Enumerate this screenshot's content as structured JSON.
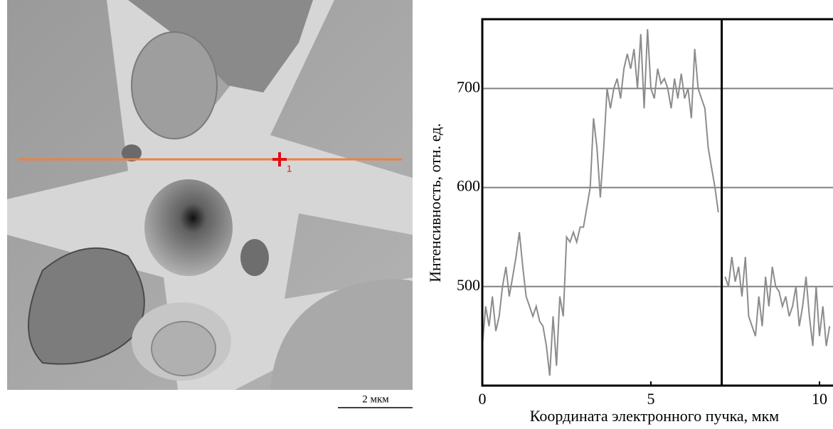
{
  "image": {
    "marker_label": "1",
    "scale_bar": "2 мкм"
  },
  "chart_data": {
    "type": "line",
    "y_label": "Интенсивность, отн. ед.",
    "x_label": "Координата электронного пучка, мкм",
    "color": "#8c8c8c",
    "xlim": [
      0,
      10.4
    ],
    "xticks": [
      0,
      5,
      10
    ],
    "ylim": [
      400,
      770
    ],
    "yticks": [
      500,
      600,
      700
    ],
    "grid": true,
    "cursor_x": 7.1,
    "x": [
      0,
      0.1,
      0.2,
      0.3,
      0.4,
      0.5,
      0.6,
      0.7,
      0.8,
      0.9,
      1.0,
      1.1,
      1.2,
      1.3,
      1.4,
      1.5,
      1.6,
      1.7,
      1.8,
      1.9,
      2.0,
      2.1,
      2.2,
      2.3,
      2.4,
      2.5,
      2.6,
      2.7,
      2.8,
      2.9,
      3.0,
      3.1,
      3.2,
      3.3,
      3.4,
      3.5,
      3.6,
      3.7,
      3.8,
      3.9,
      4.0,
      4.1,
      4.2,
      4.3,
      4.4,
      4.5,
      4.6,
      4.7,
      4.8,
      4.9,
      5.0,
      5.1,
      5.2,
      5.3,
      5.4,
      5.5,
      5.6,
      5.7,
      5.8,
      5.9,
      6.0,
      6.1,
      6.2,
      6.3,
      6.4,
      6.5,
      6.6,
      6.7,
      6.8,
      6.9,
      7.0,
      7.1,
      7.2,
      7.3,
      7.4,
      7.5,
      7.6,
      7.7,
      7.8,
      7.9,
      8.0,
      8.1,
      8.2,
      8.3,
      8.4,
      8.5,
      8.6,
      8.7,
      8.8,
      8.9,
      9.0,
      9.1,
      9.2,
      9.3,
      9.4,
      9.5,
      9.6,
      9.7,
      9.8,
      9.9,
      10.0,
      10.1,
      10.2,
      10.3
    ],
    "values": [
      440,
      480,
      460,
      490,
      455,
      470,
      500,
      520,
      490,
      510,
      530,
      555,
      520,
      490,
      480,
      470,
      480,
      465,
      460,
      440,
      410,
      470,
      420,
      490,
      470,
      550,
      545,
      555,
      545,
      560,
      560,
      580,
      600,
      670,
      640,
      590,
      640,
      700,
      680,
      700,
      710,
      690,
      720,
      735,
      720,
      740,
      700,
      755,
      680,
      760,
      700,
      690,
      720,
      705,
      710,
      700,
      680,
      710,
      690,
      715,
      690,
      700,
      670,
      740,
      700,
      690,
      680,
      640,
      620,
      600,
      575,
      null,
      510,
      500,
      530,
      505,
      520,
      490,
      530,
      470,
      460,
      450,
      490,
      460,
      510,
      480,
      520,
      500,
      495,
      480,
      490,
      470,
      480,
      500,
      460,
      480,
      510,
      470,
      440,
      500,
      450,
      480,
      440,
      460
    ]
  }
}
